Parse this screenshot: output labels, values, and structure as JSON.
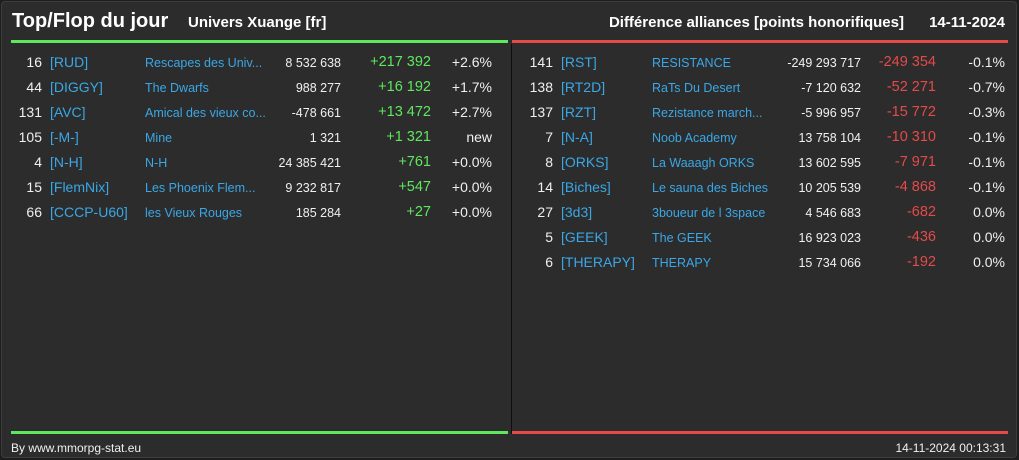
{
  "header": {
    "title": "Top/Flop du jour",
    "universe": "Univers Xuange [fr]",
    "subtitle": "Différence alliances [points honorifiques]",
    "date": "14-11-2024"
  },
  "colors": {
    "positive": "#5ee85e",
    "negative": "#e44a4a",
    "link": "#3aa7e6",
    "background": "#2c2c2c"
  },
  "top": [
    {
      "rank": "16",
      "tag": "[RUD]",
      "name": "Rescapes des Univ...",
      "points": "8 532 638",
      "diff": "+217 392",
      "pct": "+2.6%"
    },
    {
      "rank": "44",
      "tag": "[DIGGY]",
      "name": "The Dwarfs",
      "points": "988 277",
      "diff": "+16 192",
      "pct": "+1.7%"
    },
    {
      "rank": "131",
      "tag": "[AVC]",
      "name": "Amical des vieux co...",
      "points": "-478 661",
      "diff": "+13 472",
      "pct": "+2.7%"
    },
    {
      "rank": "105",
      "tag": "[-M-]",
      "name": "Mine",
      "points": "1 321",
      "diff": "+1 321",
      "pct": "new"
    },
    {
      "rank": "4",
      "tag": "[N-H]",
      "name": "N-H",
      "points": "24 385 421",
      "diff": "+761",
      "pct": "+0.0%"
    },
    {
      "rank": "15",
      "tag": "[FlemNix]",
      "name": "Les Phoenix Flem...",
      "points": "9 232 817",
      "diff": "+547",
      "pct": "+0.0%"
    },
    {
      "rank": "66",
      "tag": "[CCCP-U60]",
      "name": "les Vieux Rouges",
      "points": "185 284",
      "diff": "+27",
      "pct": "+0.0%"
    }
  ],
  "flop": [
    {
      "rank": "141",
      "tag": "[RST]",
      "name": "RESISTANCE",
      "points": "-249 293 717",
      "diff": "-249 354",
      "pct": "-0.1%"
    },
    {
      "rank": "138",
      "tag": "[RT2D]",
      "name": "RaTs Du Desert",
      "points": "-7 120 632",
      "diff": "-52 271",
      "pct": "-0.7%"
    },
    {
      "rank": "137",
      "tag": "[RZT]",
      "name": "Rezistance march...",
      "points": "-5 996 957",
      "diff": "-15 772",
      "pct": "-0.3%"
    },
    {
      "rank": "7",
      "tag": "[N-A]",
      "name": "Noob Academy",
      "points": "13 758 104",
      "diff": "-10 310",
      "pct": "-0.1%"
    },
    {
      "rank": "8",
      "tag": "[ORKS]",
      "name": "La Waaagh ORKS",
      "points": "13 602 595",
      "diff": "-7 971",
      "pct": "-0.1%"
    },
    {
      "rank": "14",
      "tag": "[Biches]",
      "name": "Le sauna des Biches",
      "points": "10 205 539",
      "diff": "-4 868",
      "pct": "-0.1%"
    },
    {
      "rank": "27",
      "tag": "[3d3]",
      "name": "3boueur de l 3space",
      "points": "4 546 683",
      "diff": "-682",
      "pct": "0.0%"
    },
    {
      "rank": "5",
      "tag": "[GEEK]",
      "name": "The GEEK",
      "points": "16 923 023",
      "diff": "-436",
      "pct": "0.0%"
    },
    {
      "rank": "6",
      "tag": "[THERAPY]",
      "name": "THERAPY",
      "points": "15 734 066",
      "diff": "-192",
      "pct": "0.0%"
    }
  ],
  "footer": {
    "credit": "By www.mmorpg-stat.eu",
    "timestamp": "14-11-2024 00:13:31"
  }
}
